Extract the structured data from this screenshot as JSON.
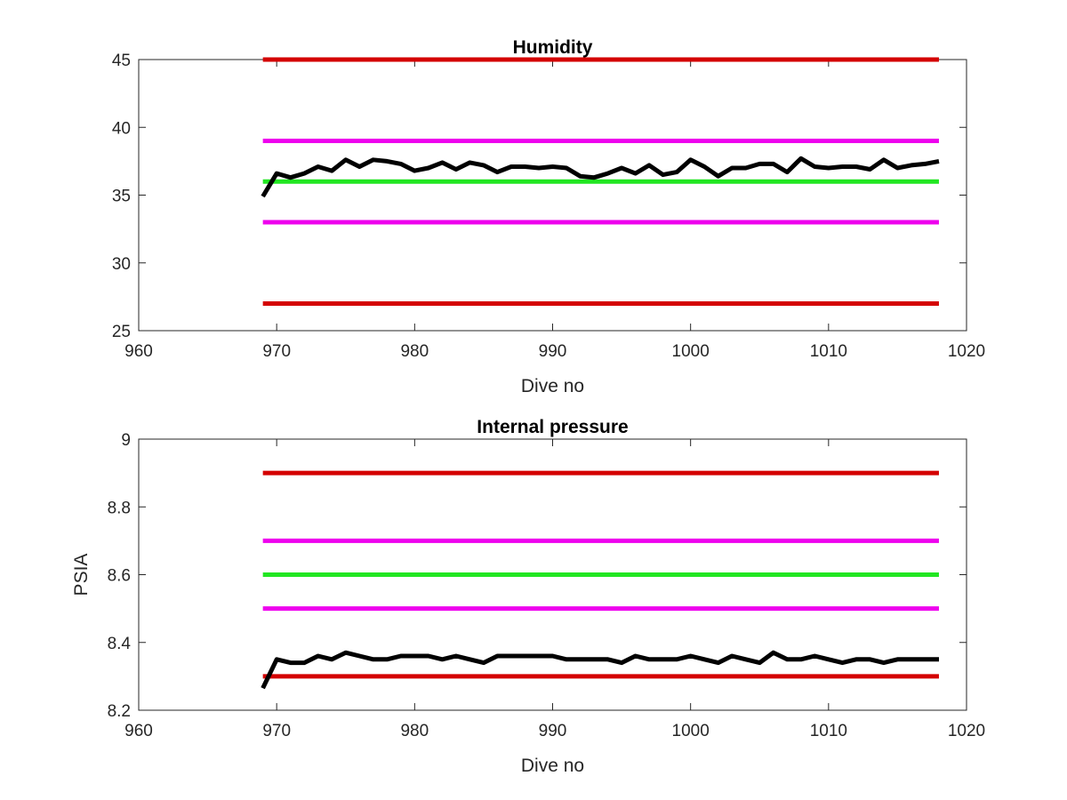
{
  "chart_data": [
    {
      "type": "line",
      "title": "Humidity",
      "xlabel": "Dive no",
      "ylabel": "",
      "xlim": [
        960,
        1020
      ],
      "ylim": [
        25,
        45
      ],
      "xticks": [
        960,
        970,
        980,
        990,
        1000,
        1010,
        1020
      ],
      "yticks": [
        25,
        30,
        35,
        40,
        45
      ],
      "grid": false,
      "colors": {
        "data": "#000000",
        "red": "#d40000",
        "magenta": "#ee00ee",
        "green": "#22e622"
      },
      "reference_lines": [
        {
          "y": 45,
          "x": [
            969,
            1018
          ],
          "color": "#d40000"
        },
        {
          "y": 39,
          "x": [
            969,
            1018
          ],
          "color": "#ee00ee"
        },
        {
          "y": 36,
          "x": [
            969,
            1018
          ],
          "color": "#22e622"
        },
        {
          "y": 33,
          "x": [
            969,
            1018
          ],
          "color": "#ee00ee"
        },
        {
          "y": 27,
          "x": [
            969,
            1018
          ],
          "color": "#d40000"
        }
      ],
      "series": [
        {
          "x": [
            969,
            970,
            971,
            972,
            973,
            974,
            975,
            976,
            977,
            978,
            979,
            980,
            981,
            982,
            983,
            984,
            985,
            986,
            987,
            988,
            989,
            990,
            991,
            992,
            993,
            994,
            995,
            996,
            997,
            998,
            999,
            1000,
            1001,
            1002,
            1003,
            1004,
            1005,
            1006,
            1007,
            1008,
            1009,
            1010,
            1011,
            1012,
            1013,
            1014,
            1015,
            1016,
            1017,
            1018
          ],
          "y": [
            34.9,
            36.6,
            36.3,
            36.6,
            37.1,
            36.8,
            37.6,
            37.1,
            37.6,
            37.5,
            37.3,
            36.8,
            37.0,
            37.4,
            36.9,
            37.4,
            37.2,
            36.7,
            37.1,
            37.1,
            37.0,
            37.1,
            37.0,
            36.4,
            36.3,
            36.6,
            37.0,
            36.6,
            37.2,
            36.5,
            36.7,
            37.6,
            37.1,
            36.4,
            37.0,
            37.0,
            37.3,
            37.3,
            36.7,
            37.7,
            37.1,
            37.0,
            37.1,
            37.1,
            36.9,
            37.6,
            37.0,
            37.2,
            37.3,
            37.5
          ]
        }
      ]
    },
    {
      "type": "line",
      "title": "Internal pressure",
      "xlabel": "Dive no",
      "ylabel": "PSIA",
      "xlim": [
        960,
        1020
      ],
      "ylim": [
        8.2,
        9
      ],
      "xticks": [
        960,
        970,
        980,
        990,
        1000,
        1010,
        1020
      ],
      "yticks": [
        "8.2",
        "8.4",
        "8.6",
        "8.8",
        "9"
      ],
      "grid": false,
      "colors": {
        "data": "#000000",
        "red": "#d40000",
        "magenta": "#ee00ee",
        "green": "#22e622"
      },
      "reference_lines": [
        {
          "y": 8.9,
          "x": [
            969,
            1018
          ],
          "color": "#d40000"
        },
        {
          "y": 8.7,
          "x": [
            969,
            1018
          ],
          "color": "#ee00ee"
        },
        {
          "y": 8.6,
          "x": [
            969,
            1018
          ],
          "color": "#22e622"
        },
        {
          "y": 8.5,
          "x": [
            969,
            1018
          ],
          "color": "#ee00ee"
        },
        {
          "y": 8.3,
          "x": [
            969,
            1018
          ],
          "color": "#d40000"
        }
      ],
      "series": [
        {
          "x": [
            969,
            970,
            971,
            972,
            973,
            974,
            975,
            976,
            977,
            978,
            979,
            980,
            981,
            982,
            983,
            984,
            985,
            986,
            987,
            988,
            989,
            990,
            991,
            992,
            993,
            994,
            995,
            996,
            997,
            998,
            999,
            1000,
            1001,
            1002,
            1003,
            1004,
            1005,
            1006,
            1007,
            1008,
            1009,
            1010,
            1011,
            1012,
            1013,
            1014,
            1015,
            1016,
            1017,
            1018
          ],
          "y": [
            8.265,
            8.35,
            8.34,
            8.34,
            8.36,
            8.35,
            8.37,
            8.36,
            8.35,
            8.35,
            8.36,
            8.36,
            8.36,
            8.35,
            8.36,
            8.35,
            8.34,
            8.36,
            8.36,
            8.36,
            8.36,
            8.36,
            8.35,
            8.35,
            8.35,
            8.35,
            8.34,
            8.36,
            8.35,
            8.35,
            8.35,
            8.36,
            8.35,
            8.34,
            8.36,
            8.35,
            8.34,
            8.37,
            8.35,
            8.35,
            8.36,
            8.35,
            8.34,
            8.35,
            8.35,
            8.34,
            8.35,
            8.35,
            8.35,
            8.35
          ]
        }
      ]
    }
  ]
}
